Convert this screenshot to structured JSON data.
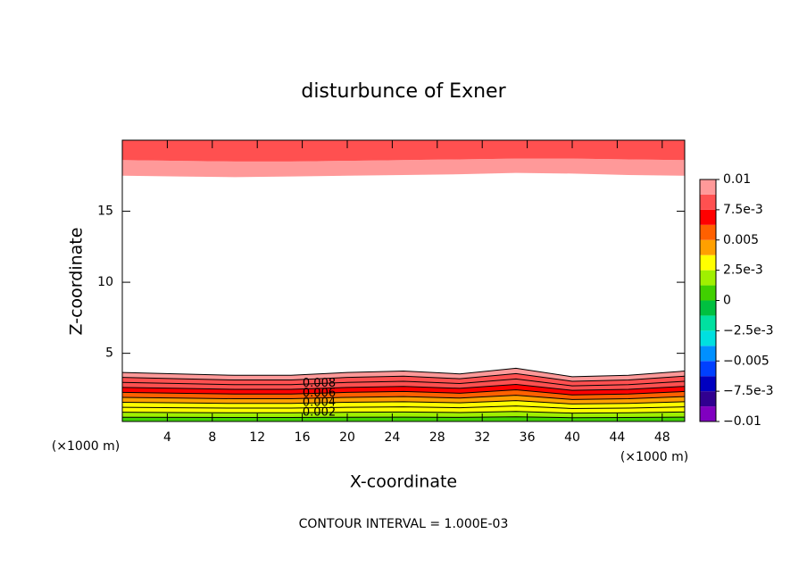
{
  "chart_data": {
    "type": "contour",
    "title": "disturbunce of Exner",
    "xlabel": "X-coordinate",
    "ylabel": "Z-coordinate",
    "x_unit": "(×1000 m)",
    "note": "CONTOUR INTERVAL = 1.000E-03",
    "xlim": [
      0,
      50
    ],
    "ylim": [
      0.2,
      20
    ],
    "xticks": [
      4,
      8,
      12,
      16,
      20,
      24,
      28,
      32,
      36,
      40,
      44,
      48
    ],
    "yticks": [
      5,
      10,
      15
    ],
    "line_color": "#000000",
    "x": [
      0,
      5,
      10,
      15,
      20,
      25,
      30,
      35,
      40,
      45,
      50
    ],
    "contours": [
      {
        "level": 0.001,
        "heights": [
          0.5,
          0.49,
          0.48,
          0.48,
          0.5,
          0.51,
          0.49,
          0.53,
          0.47,
          0.48,
          0.51
        ]
      },
      {
        "level": 0.002,
        "heights": [
          0.85,
          0.83,
          0.81,
          0.81,
          0.85,
          0.87,
          0.83,
          0.91,
          0.79,
          0.81,
          0.87
        ]
      },
      {
        "level": 0.003,
        "heights": [
          1.2,
          1.17,
          1.14,
          1.14,
          1.2,
          1.23,
          1.17,
          1.29,
          1.11,
          1.14,
          1.23
        ]
      },
      {
        "level": 0.004,
        "heights": [
          1.55,
          1.51,
          1.47,
          1.47,
          1.55,
          1.59,
          1.51,
          1.67,
          1.43,
          1.47,
          1.59
        ]
      },
      {
        "level": 0.005,
        "heights": [
          1.9,
          1.85,
          1.8,
          1.8,
          1.9,
          1.95,
          1.85,
          2.05,
          1.75,
          1.8,
          1.95
        ]
      },
      {
        "level": 0.006,
        "heights": [
          2.25,
          2.19,
          2.13,
          2.13,
          2.25,
          2.31,
          2.19,
          2.43,
          2.07,
          2.13,
          2.31
        ]
      },
      {
        "level": 0.007,
        "heights": [
          2.6,
          2.53,
          2.46,
          2.46,
          2.6,
          2.67,
          2.53,
          2.81,
          2.39,
          2.46,
          2.67
        ]
      },
      {
        "level": 0.008,
        "heights": [
          2.95,
          2.87,
          2.79,
          2.79,
          2.95,
          3.03,
          2.87,
          3.19,
          2.71,
          2.79,
          3.03
        ]
      },
      {
        "level": 0.009,
        "heights": [
          3.3,
          3.21,
          3.12,
          3.12,
          3.3,
          3.39,
          3.21,
          3.57,
          3.03,
          3.12,
          3.39
        ]
      },
      {
        "level": 0.01,
        "heights": [
          3.65,
          3.55,
          3.45,
          3.45,
          3.65,
          3.75,
          3.55,
          3.95,
          3.35,
          3.45,
          3.75
        ]
      }
    ],
    "top_contours": [
      {
        "level": 0.0095,
        "heights": [
          17.5,
          17.45,
          17.4,
          17.45,
          17.5,
          17.55,
          17.6,
          17.7,
          17.65,
          17.55,
          17.5
        ]
      },
      {
        "level": 0.008,
        "heights": [
          18.6,
          18.55,
          18.5,
          18.5,
          18.55,
          18.6,
          18.65,
          18.7,
          18.7,
          18.65,
          18.6
        ]
      }
    ],
    "contour_labels": [
      0.008,
      0.006,
      0.004,
      0.002
    ],
    "colorbar": {
      "lim": [
        -0.01,
        0.01
      ],
      "colors": [
        "#8000c0",
        "#300090",
        "#0000c0",
        "#0040ff",
        "#0090ff",
        "#00e0e0",
        "#00e0a0",
        "#00c040",
        "#40d000",
        "#a0f000",
        "#ffff00",
        "#ffa000",
        "#ff6000",
        "#ff0000",
        "#ff5050",
        "#ff9999"
      ],
      "ticks": [
        0.01,
        {
          "value": 0.0075,
          "label": "7.5e-3"
        },
        0.005,
        {
          "value": 0.0025,
          "label": "2.5e-3"
        },
        0,
        {
          "value": -0.0025,
          "label": "−2.5e-3"
        },
        {
          "value": -0.005,
          "label": "−0.005"
        },
        {
          "value": -0.0075,
          "label": "−7.5e-3"
        },
        {
          "value": -0.01,
          "label": "−0.01"
        }
      ]
    }
  }
}
